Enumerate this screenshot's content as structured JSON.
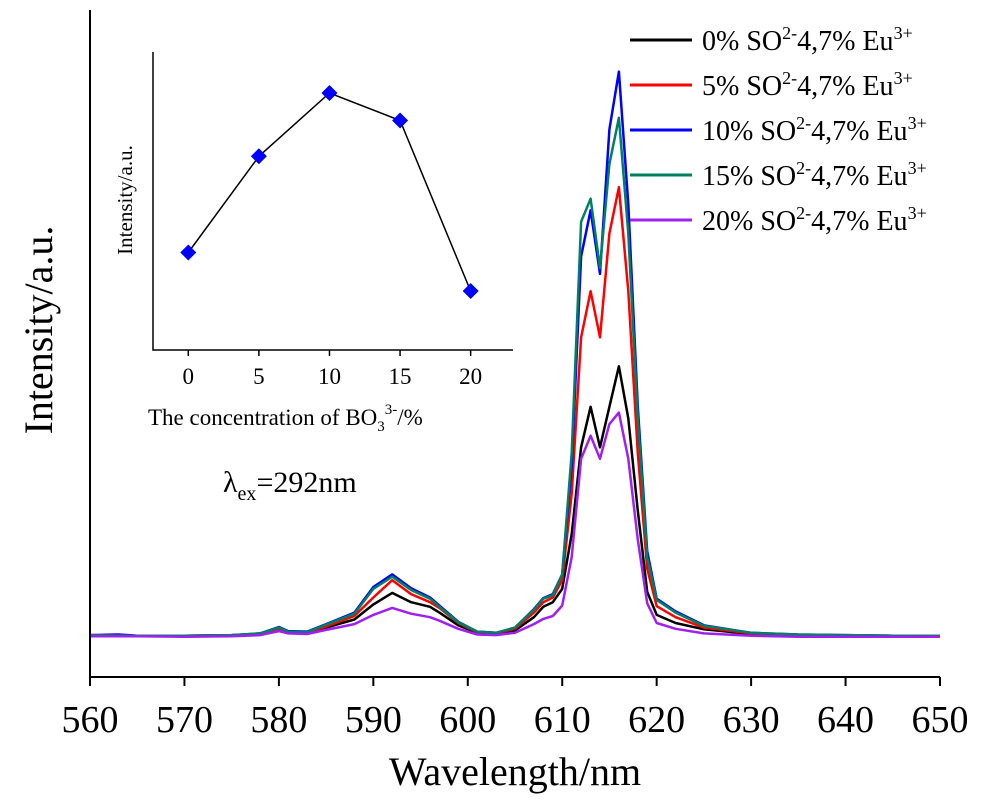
{
  "chart_data": [
    {
      "type": "line",
      "title": "",
      "xlabel": "Wavelength/nm",
      "ylabel": "Intensity/a.u.",
      "xlim": [
        560,
        650
      ],
      "ylim": [
        0,
        100
      ],
      "x_ticks": [
        "560",
        "570",
        "580",
        "590",
        "600",
        "610",
        "620",
        "630",
        "640",
        "650"
      ],
      "y_ticks": [],
      "grid": false,
      "legend_position": "top-right",
      "annotation": {
        "prefix": "λ",
        "sub": "ex",
        "suffix": "=292nm"
      },
      "series": [
        {
          "name": "0% SO2-4,7% Eu3+",
          "label": {
            "pre": "0% SO",
            "sup1": "2-",
            "mid": "4,7% Eu",
            "sup2": "3+"
          },
          "color": "#000000",
          "points": [
            [
              560,
              0.4
            ],
            [
              565,
              0.4
            ],
            [
              570,
              0.3
            ],
            [
              575,
              0.4
            ],
            [
              578,
              0.6
            ],
            [
              580,
              1.5
            ],
            [
              581,
              0.9
            ],
            [
              583,
              0.8
            ],
            [
              585,
              1.8
            ],
            [
              588,
              3.2
            ],
            [
              590,
              5.8
            ],
            [
              592,
              7.8
            ],
            [
              594,
              6.2
            ],
            [
              596,
              5.4
            ],
            [
              597,
              4.4
            ],
            [
              599,
              2.2
            ],
            [
              601,
              0.9
            ],
            [
              603,
              0.7
            ],
            [
              605,
              1.3
            ],
            [
              607,
              3.6
            ],
            [
              608,
              5.4
            ],
            [
              609,
              6.2
            ],
            [
              610,
              8.5
            ],
            [
              611,
              18
            ],
            [
              612,
              33
            ],
            [
              613,
              40
            ],
            [
              614,
              33
            ],
            [
              615,
              40
            ],
            [
              616,
              47
            ],
            [
              617,
              38
            ],
            [
              618,
              22
            ],
            [
              619,
              8
            ],
            [
              620,
              4
            ],
            [
              622,
              2.6
            ],
            [
              625,
              1.5
            ],
            [
              630,
              0.7
            ],
            [
              635,
              0.4
            ],
            [
              640,
              0.3
            ],
            [
              645,
              0.3
            ],
            [
              650,
              0.3
            ]
          ]
        },
        {
          "name": "5% SO2-4,7% Eu3+",
          "label": {
            "pre": "5% SO",
            "sup1": "2-",
            "mid": "4,7% Eu",
            "sup2": "3+"
          },
          "color": "#ff0000",
          "points": [
            [
              560,
              0.5
            ],
            [
              565,
              0.4
            ],
            [
              570,
              0.4
            ],
            [
              575,
              0.5
            ],
            [
              578,
              0.7
            ],
            [
              580,
              1.6
            ],
            [
              581,
              1.0
            ],
            [
              583,
              0.9
            ],
            [
              585,
              2.0
            ],
            [
              588,
              3.8
            ],
            [
              590,
              7.0
            ],
            [
              592,
              10.0
            ],
            [
              594,
              7.6
            ],
            [
              596,
              6.2
            ],
            [
              597,
              5.2
            ],
            [
              599,
              2.6
            ],
            [
              601,
              1.0
            ],
            [
              603,
              0.8
            ],
            [
              605,
              1.6
            ],
            [
              607,
              4.4
            ],
            [
              608,
              6.2
            ],
            [
              609,
              7.0
            ],
            [
              610,
              10.0
            ],
            [
              611,
              25
            ],
            [
              612,
              52
            ],
            [
              613,
              60
            ],
            [
              614,
              52
            ],
            [
              615,
              70
            ],
            [
              616,
              78
            ],
            [
              617,
              60
            ],
            [
              618,
              32
            ],
            [
              619,
              12
            ],
            [
              620,
              5.5
            ],
            [
              622,
              3.6
            ],
            [
              625,
              1.8
            ],
            [
              630,
              0.8
            ],
            [
              635,
              0.5
            ],
            [
              640,
              0.4
            ],
            [
              645,
              0.3
            ],
            [
              650,
              0.3
            ]
          ]
        },
        {
          "name": "10% SO2-4,7% Eu3+",
          "label": {
            "pre": "10% SO",
            "sup1": "2-",
            "mid": "4,7% Eu",
            "sup2": "3+"
          },
          "color": "#0000ff",
          "points": [
            [
              560,
              0.5
            ],
            [
              563,
              0.6
            ],
            [
              565,
              0.4
            ],
            [
              570,
              0.4
            ],
            [
              575,
              0.5
            ],
            [
              578,
              0.8
            ],
            [
              580,
              1.9
            ],
            [
              581,
              1.2
            ],
            [
              583,
              1.1
            ],
            [
              585,
              2.4
            ],
            [
              588,
              4.4
            ],
            [
              590,
              8.8
            ],
            [
              592,
              11.0
            ],
            [
              594,
              8.6
            ],
            [
              596,
              7.0
            ],
            [
              597,
              5.6
            ],
            [
              599,
              2.8
            ],
            [
              601,
              1.1
            ],
            [
              603,
              0.9
            ],
            [
              605,
              1.8
            ],
            [
              607,
              5.0
            ],
            [
              608,
              6.9
            ],
            [
              609,
              7.6
            ],
            [
              610,
              11.0
            ],
            [
              611,
              30
            ],
            [
              612,
              66
            ],
            [
              613,
              74
            ],
            [
              614,
              63
            ],
            [
              615,
              88
            ],
            [
              616,
              98
            ],
            [
              617,
              75
            ],
            [
              618,
              40
            ],
            [
              619,
              15
            ],
            [
              620,
              6.8
            ],
            [
              622,
              4.6
            ],
            [
              625,
              2.2
            ],
            [
              630,
              0.9
            ],
            [
              635,
              0.6
            ],
            [
              640,
              0.5
            ],
            [
              645,
              0.4
            ],
            [
              650,
              0.4
            ]
          ]
        },
        {
          "name": "15% SO2-4,7% Eu3+",
          "label": {
            "pre": "15% SO",
            "sup1": "2-",
            "mid": "4,7% Eu",
            "sup2": "3+"
          },
          "color": "#008060",
          "points": [
            [
              560,
              0.5
            ],
            [
              565,
              0.4
            ],
            [
              570,
              0.4
            ],
            [
              575,
              0.5
            ],
            [
              578,
              0.8
            ],
            [
              580,
              1.8
            ],
            [
              581,
              1.1
            ],
            [
              583,
              1.0
            ],
            [
              585,
              2.3
            ],
            [
              588,
              4.2
            ],
            [
              590,
              8.5
            ],
            [
              592,
              10.6
            ],
            [
              594,
              8.3
            ],
            [
              596,
              6.8
            ],
            [
              597,
              5.4
            ],
            [
              599,
              2.7
            ],
            [
              601,
              1.1
            ],
            [
              603,
              0.9
            ],
            [
              605,
              1.8
            ],
            [
              607,
              4.9
            ],
            [
              608,
              6.8
            ],
            [
              609,
              7.4
            ],
            [
              610,
              11.0
            ],
            [
              611,
              32
            ],
            [
              612,
              72
            ],
            [
              613,
              76
            ],
            [
              614,
              64
            ],
            [
              615,
              82
            ],
            [
              616,
              90
            ],
            [
              617,
              70
            ],
            [
              618,
              38
            ],
            [
              619,
              14
            ],
            [
              620,
              6.6
            ],
            [
              622,
              4.4
            ],
            [
              625,
              2.1
            ],
            [
              630,
              0.9
            ],
            [
              635,
              0.6
            ],
            [
              640,
              0.5
            ],
            [
              645,
              0.4
            ],
            [
              650,
              0.4
            ]
          ]
        },
        {
          "name": "20% SO2-4,7% Eu3+",
          "label": {
            "pre": "20% SO",
            "sup1": "2-",
            "mid": "4,7% Eu",
            "sup2": "3+"
          },
          "color": "#a020f0",
          "points": [
            [
              560,
              0.3
            ],
            [
              565,
              0.3
            ],
            [
              570,
              0.2
            ],
            [
              575,
              0.3
            ],
            [
              578,
              0.5
            ],
            [
              580,
              1.2
            ],
            [
              581,
              0.8
            ],
            [
              583,
              0.7
            ],
            [
              585,
              1.4
            ],
            [
              588,
              2.4
            ],
            [
              590,
              4.0
            ],
            [
              592,
              5.2
            ],
            [
              594,
              4.2
            ],
            [
              596,
              3.6
            ],
            [
              597,
              3.0
            ],
            [
              599,
              1.6
            ],
            [
              601,
              0.6
            ],
            [
              603,
              0.5
            ],
            [
              605,
              0.9
            ],
            [
              607,
              2.4
            ],
            [
              608,
              3.3
            ],
            [
              609,
              3.8
            ],
            [
              610,
              5.6
            ],
            [
              611,
              14
            ],
            [
              612,
              31
            ],
            [
              613,
              35
            ],
            [
              614,
              31
            ],
            [
              615,
              37
            ],
            [
              616,
              39
            ],
            [
              617,
              31
            ],
            [
              618,
              17
            ],
            [
              619,
              6
            ],
            [
              620,
              2.6
            ],
            [
              622,
              1.6
            ],
            [
              625,
              0.8
            ],
            [
              630,
              0.4
            ],
            [
              635,
              0.2
            ],
            [
              640,
              0.2
            ],
            [
              645,
              0.2
            ],
            [
              650,
              0.2
            ]
          ]
        }
      ]
    },
    {
      "type": "line",
      "title": "",
      "xlabel": {
        "pre": "The concentration of BO",
        "sub": "3",
        "sup": "3-",
        "post": "/%"
      },
      "ylabel": "Intensity/a.u.",
      "xlim": [
        -2.5,
        23
      ],
      "ylim": [
        0,
        100
      ],
      "x_ticks": [
        "0",
        "5",
        "10",
        "15",
        "20"
      ],
      "marker": "diamond",
      "color": "#0000ff",
      "x": [
        0,
        5,
        10,
        15,
        20
      ],
      "values": [
        30,
        65,
        88,
        78,
        16
      ]
    }
  ]
}
